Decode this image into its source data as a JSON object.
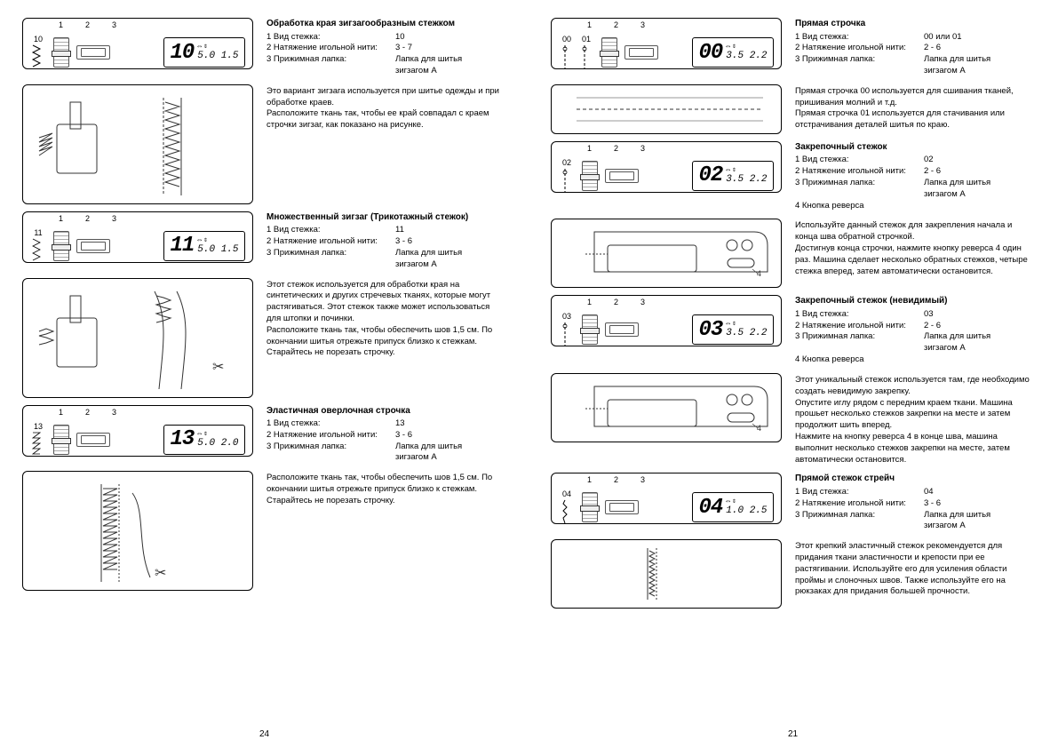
{
  "left_page": {
    "page_num": "24",
    "sections": [
      {
        "diagram": {
          "headers": [
            "1",
            "2",
            "3"
          ],
          "stitch_num": "10",
          "lcd_big": "10",
          "lcd_small": "5.0 1.5",
          "stitch_glyph": "zigzag"
        },
        "title": "Обработка края зигзагообразным стежком",
        "specs": [
          {
            "n": "1",
            "label": "Вид стежка:",
            "val": "10"
          },
          {
            "n": "2",
            "label": "Натяжение игольной нити:",
            "val": "3 - 7"
          },
          {
            "n": "3",
            "label": "Прижимная лапка:",
            "val": "Лапка для шитья"
          },
          {
            "n": "",
            "label": "",
            "val": "зигзагом A"
          }
        ]
      },
      {
        "illus_type": "zigzag-edge",
        "desc": "Это вариант зигзага используется при шитье одежды и при обработке краев.\nРасположите ткань так, чтобы ее край совпадал с краем строчки зигзаг, как показано на рисунке."
      },
      {
        "diagram": {
          "headers": [
            "1",
            "2",
            "3"
          ],
          "stitch_num": "11",
          "lcd_big": "11",
          "lcd_small": "5.0 1.5",
          "stitch_glyph": "multizigzag"
        },
        "title": "Множественный зигзаг  (Трикотажный стежок)",
        "specs": [
          {
            "n": "1",
            "label": "Вид стежка:",
            "val": "11"
          },
          {
            "n": "2",
            "label": "Натяжение игольной нити:",
            "val": "3 - 6"
          },
          {
            "n": "3",
            "label": "Прижимная лапка:",
            "val": "Лапка для шитья"
          },
          {
            "n": "",
            "label": "",
            "val": "зигзагом A"
          }
        ]
      },
      {
        "illus_type": "multizig-edge",
        "desc": "Этот стежок используется для обработки края на синтетических и других стречевых тканях, которые могут растягиваться. Этот стежок также может использоваться для штопки и починки.\nРасположите ткань так, чтобы обеспечить шов 1,5 см. По окончании шитья отрежьте припуск близко к стежкам. Старайтесь не порезать строчку."
      },
      {
        "diagram": {
          "headers": [
            "1",
            "2",
            "3"
          ],
          "stitch_num": "13",
          "lcd_big": "13",
          "lcd_small": "5.0 2.0",
          "stitch_glyph": "overlock"
        },
        "title": "Эластичная оверлочная строчка",
        "specs": [
          {
            "n": "1",
            "label": "Вид стежка:",
            "val": "13"
          },
          {
            "n": "2",
            "label": "Натяжение игольной нити:",
            "val": "3 - 6"
          },
          {
            "n": "3",
            "label": "Прижимная лапка:",
            "val": "Лапка для шитья"
          },
          {
            "n": "",
            "label": "",
            "val": "зигзагом A"
          }
        ]
      },
      {
        "illus_type": "overlock-edge",
        "desc": "Расположите ткань так, чтобы обеспечить шов 1,5 см. По окончании шитья отрежьте припуск близко к стежкам. Старайтесь не порезать строчку."
      }
    ]
  },
  "right_page": {
    "page_num": "21",
    "sections": [
      {
        "diagram": {
          "headers": [
            "1",
            "2",
            "3"
          ],
          "stitch_num": "00",
          "stitch_num2": "01",
          "lcd_big": "00",
          "lcd_small": "3.5 2.2",
          "stitch_glyph": "straight",
          "two_nums": true
        },
        "title": "Прямая строчка",
        "specs": [
          {
            "n": "1",
            "label": "Вид стежка:",
            "val": "00 или 01"
          },
          {
            "n": "2",
            "label": "Натяжение игольной нити:",
            "val": "2 - 6"
          },
          {
            "n": "3",
            "label": "Прижимная лапка:",
            "val": "Лапка для шитья"
          },
          {
            "n": "",
            "label": "",
            "val": "зигзагом A"
          }
        ]
      },
      {
        "illus_type": "straight-seam",
        "illus_height": "short",
        "desc": "Прямая строчка  00  используется для сшивания тканей, пришивания молний  и т.д.\nПрямая строчка  01  используется для стачивания или отстрачивания деталей шитья по краю."
      },
      {
        "diagram": {
          "headers": [
            "1",
            "2",
            "3"
          ],
          "stitch_num": "02",
          "lcd_big": "02",
          "lcd_small": "3.5 2.2",
          "stitch_glyph": "locking"
        },
        "title": "Закрепочный стежок",
        "specs": [
          {
            "n": "1",
            "label": "Вид стежка:",
            "val": "02"
          },
          {
            "n": "2",
            "label": "Натяжение игольной нити:",
            "val": "2 - 6"
          },
          {
            "n": "3",
            "label": "Прижимная лапка:",
            "val": "Лапка для шитья"
          },
          {
            "n": "",
            "label": "",
            "val": "зигзагом A"
          },
          {
            "n": "4",
            "label": "Кнопка реверса",
            "val": ""
          }
        ]
      },
      {
        "illus_type": "machine-reverse",
        "illus_height": "med",
        "desc": "Используйте данный стежок для закрепления начала и конца шва обратной строчкой.\nДостигнув конца строчки, нажмите кнопку реверса   4 один раз. Машина сделает несколько обратных стежков, четыре стежка   вперед, затем автоматически остановится."
      },
      {
        "diagram": {
          "headers": [
            "1",
            "2",
            "3"
          ],
          "stitch_num": "03",
          "lcd_big": "03",
          "lcd_small": "3.5 2.2",
          "stitch_glyph": "locking-inv"
        },
        "title": "Закрепочный стежок (невидимый)",
        "specs": [
          {
            "n": "1",
            "label": "Вид стежка:",
            "val": "03"
          },
          {
            "n": "2",
            "label": "Натяжение игольной нити:",
            "val": "2 - 6"
          },
          {
            "n": "3",
            "label": "Прижимная лапка:",
            "val": "Лапка для шитья"
          },
          {
            "n": "",
            "label": "",
            "val": "зигзагом A"
          },
          {
            "n": "4",
            "label": "Кнопка реверса",
            "val": ""
          }
        ]
      },
      {
        "illus_type": "machine-reverse",
        "illus_height": "med",
        "desc": "Этот уникальный стежок используется там, где необходимо создать невидимую закрепку.\nОпустите иглу рядом с передним краем ткани. Машина прошьет несколько стежков закрепки на месте и затем продолжит шить вперед.\nНажмите на кнопку реверса  4  в конце шва, машина выполнит несколько стежков закрепки на месте, затем автоматически остановится."
      },
      {
        "diagram": {
          "headers": [
            "1",
            "2",
            "3"
          ],
          "stitch_num": "04",
          "lcd_big": "04",
          "lcd_small": "1.0 2.5",
          "stitch_glyph": "stretch"
        },
        "title": "Прямой стежок стрейч",
        "specs": [
          {
            "n": "1",
            "label": "Вид стежка:",
            "val": "04"
          },
          {
            "n": "2",
            "label": "Натяжение игольной нити:",
            "val": "3 - 6"
          },
          {
            "n": "3",
            "label": "Прижимная лапка:",
            "val": "Лапка для шитья"
          },
          {
            "n": "",
            "label": "",
            "val": "зигзагом A"
          }
        ]
      },
      {
        "illus_type": "stretch-seam",
        "illus_height": "med",
        "desc": "Этот крепкий эластичный стежок рекомендуется для придания ткани эластичности и крепости при ее растягивании. Используйте его для усиления области проймы и слоночных швов. Также используйте его на рюкзаках для придания большей прочности."
      }
    ]
  }
}
